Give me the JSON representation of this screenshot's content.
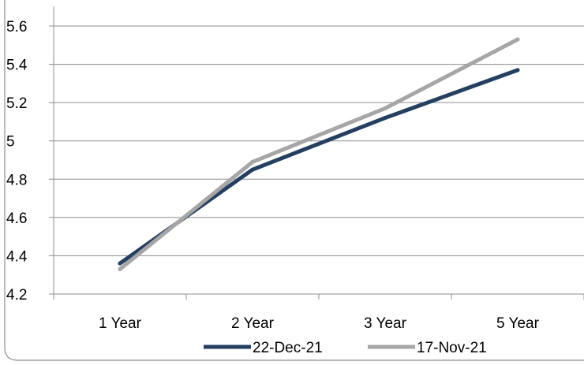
{
  "chart_data": {
    "type": "line",
    "categories": [
      "1 Year",
      "2 Year",
      "3 Year",
      "5 Year"
    ],
    "series": [
      {
        "name": "22-Dec-21",
        "values": [
          4.36,
          4.85,
          5.12,
          5.37
        ],
        "color": "#243f60"
      },
      {
        "name": "17-Nov-21",
        "values": [
          4.33,
          4.89,
          5.17,
          5.53
        ],
        "color": "#a6a6a6"
      }
    ],
    "ylim": [
      4.2,
      5.6
    ],
    "yticks": [
      "4.2",
      "4.4",
      "4.6",
      "4.8",
      "5",
      "5.2",
      "5.4",
      "5.6"
    ],
    "grid": true,
    "legend": "bottom",
    "title": "",
    "xlabel": "",
    "ylabel": ""
  },
  "colors": {
    "grid": "#8c8c8c",
    "axis": "#8c8c8c",
    "frame": "#8c8c8c"
  }
}
